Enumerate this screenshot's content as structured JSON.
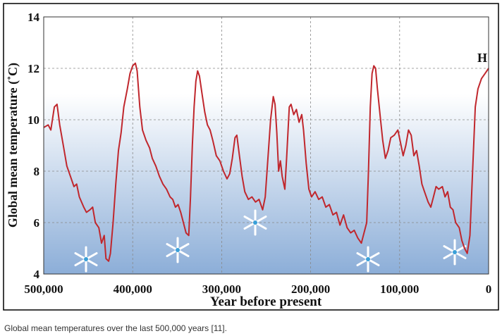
{
  "chart_data": {
    "type": "line",
    "x_label": "Year before present",
    "y_label": "Global mean temperature (˚C)",
    "annotation": "H",
    "caption": "Global mean temperatures over the last 500,000 years [11].",
    "xlim": [
      500000,
      0
    ],
    "ylim": [
      4,
      14
    ],
    "xticks": [
      {
        "value": 500000,
        "label": "500,000"
      },
      {
        "value": 400000,
        "label": "400,000"
      },
      {
        "value": 300000,
        "label": "300,000"
      },
      {
        "value": 200000,
        "label": "200,000"
      },
      {
        "value": 100000,
        "label": "100,000"
      },
      0
    ],
    "yticks": [
      4,
      6,
      8,
      10,
      12,
      14
    ],
    "grid": true,
    "series": [
      {
        "color": "#c0272d",
        "x": [
          500000,
          495000,
          492000,
          488000,
          485000,
          482000,
          478000,
          474000,
          470000,
          466000,
          463000,
          460000,
          455000,
          452000,
          448000,
          445000,
          442000,
          438000,
          435000,
          432000,
          430000,
          427000,
          425000,
          422000,
          419000,
          416000,
          413000,
          410000,
          406000,
          403000,
          400000,
          397000,
          395000,
          392000,
          389000,
          385000,
          381000,
          378000,
          374000,
          370000,
          366000,
          362000,
          358000,
          355000,
          352000,
          349000,
          346000,
          343000,
          340000,
          337000,
          335000,
          333000,
          331000,
          329000,
          327000,
          325000,
          322000,
          319000,
          316000,
          313000,
          310000,
          306000,
          302000,
          298000,
          294000,
          291000,
          288000,
          285000,
          283000,
          280000,
          277000,
          274000,
          270000,
          266000,
          262000,
          258000,
          254000,
          251000,
          248000,
          245000,
          242000,
          240000,
          238000,
          236000,
          234000,
          232000,
          229000,
          227000,
          224000,
          222000,
          219000,
          216000,
          213000,
          210000,
          208000,
          205000,
          202000,
          199000,
          195000,
          191000,
          187000,
          183000,
          179000,
          175000,
          171000,
          167000,
          163000,
          159000,
          155000,
          151000,
          147000,
          143000,
          140000,
          137000,
          135000,
          133000,
          131000,
          129000,
          127000,
          125000,
          122000,
          119000,
          116000,
          113000,
          110000,
          106000,
          102000,
          99000,
          96000,
          93000,
          90000,
          87000,
          84000,
          81000,
          78000,
          75000,
          72000,
          68000,
          65000,
          62000,
          59000,
          56000,
          52000,
          49000,
          46000,
          43000,
          40000,
          37000,
          33000,
          30000,
          27000,
          24000,
          21000,
          18000,
          15000,
          12000,
          8000,
          4000,
          0
        ],
        "values": [
          9.7,
          9.8,
          9.6,
          10.5,
          10.6,
          9.8,
          9.0,
          8.2,
          7.8,
          7.4,
          7.5,
          7.0,
          6.6,
          6.4,
          6.5,
          6.6,
          6.0,
          5.8,
          5.2,
          5.5,
          4.6,
          4.5,
          4.8,
          6.0,
          7.5,
          8.8,
          9.5,
          10.5,
          11.2,
          11.8,
          12.1,
          12.2,
          11.9,
          10.5,
          9.6,
          9.2,
          8.9,
          8.5,
          8.2,
          7.8,
          7.5,
          7.3,
          7.0,
          6.9,
          6.6,
          6.7,
          6.4,
          6.0,
          5.6,
          5.5,
          7.0,
          9.0,
          10.5,
          11.5,
          11.9,
          11.7,
          11.0,
          10.3,
          9.8,
          9.6,
          9.2,
          8.6,
          8.4,
          8.0,
          7.7,
          7.9,
          8.5,
          9.3,
          9.4,
          8.6,
          7.8,
          7.2,
          6.9,
          7.0,
          6.8,
          6.9,
          6.5,
          7.0,
          8.5,
          10.0,
          10.9,
          10.6,
          9.5,
          8.0,
          8.4,
          7.8,
          7.3,
          8.5,
          10.5,
          10.6,
          10.2,
          10.4,
          9.9,
          10.2,
          9.6,
          8.3,
          7.3,
          7.0,
          7.2,
          6.9,
          7.0,
          6.6,
          6.7,
          6.3,
          6.4,
          5.9,
          6.3,
          5.8,
          5.6,
          5.7,
          5.4,
          5.2,
          5.6,
          6.0,
          8.0,
          10.5,
          11.8,
          12.1,
          12.0,
          11.2,
          10.2,
          9.2,
          8.5,
          8.8,
          9.3,
          9.4,
          9.6,
          9.1,
          8.6,
          9.0,
          9.6,
          9.4,
          8.6,
          8.8,
          8.2,
          7.5,
          7.2,
          6.8,
          6.6,
          7.0,
          7.4,
          7.3,
          7.4,
          7.0,
          7.2,
          6.6,
          6.5,
          6.0,
          5.8,
          5.3,
          5.0,
          4.8,
          5.5,
          8.0,
          10.5,
          11.2,
          11.6,
          11.8,
          12.0
        ]
      }
    ]
  }
}
